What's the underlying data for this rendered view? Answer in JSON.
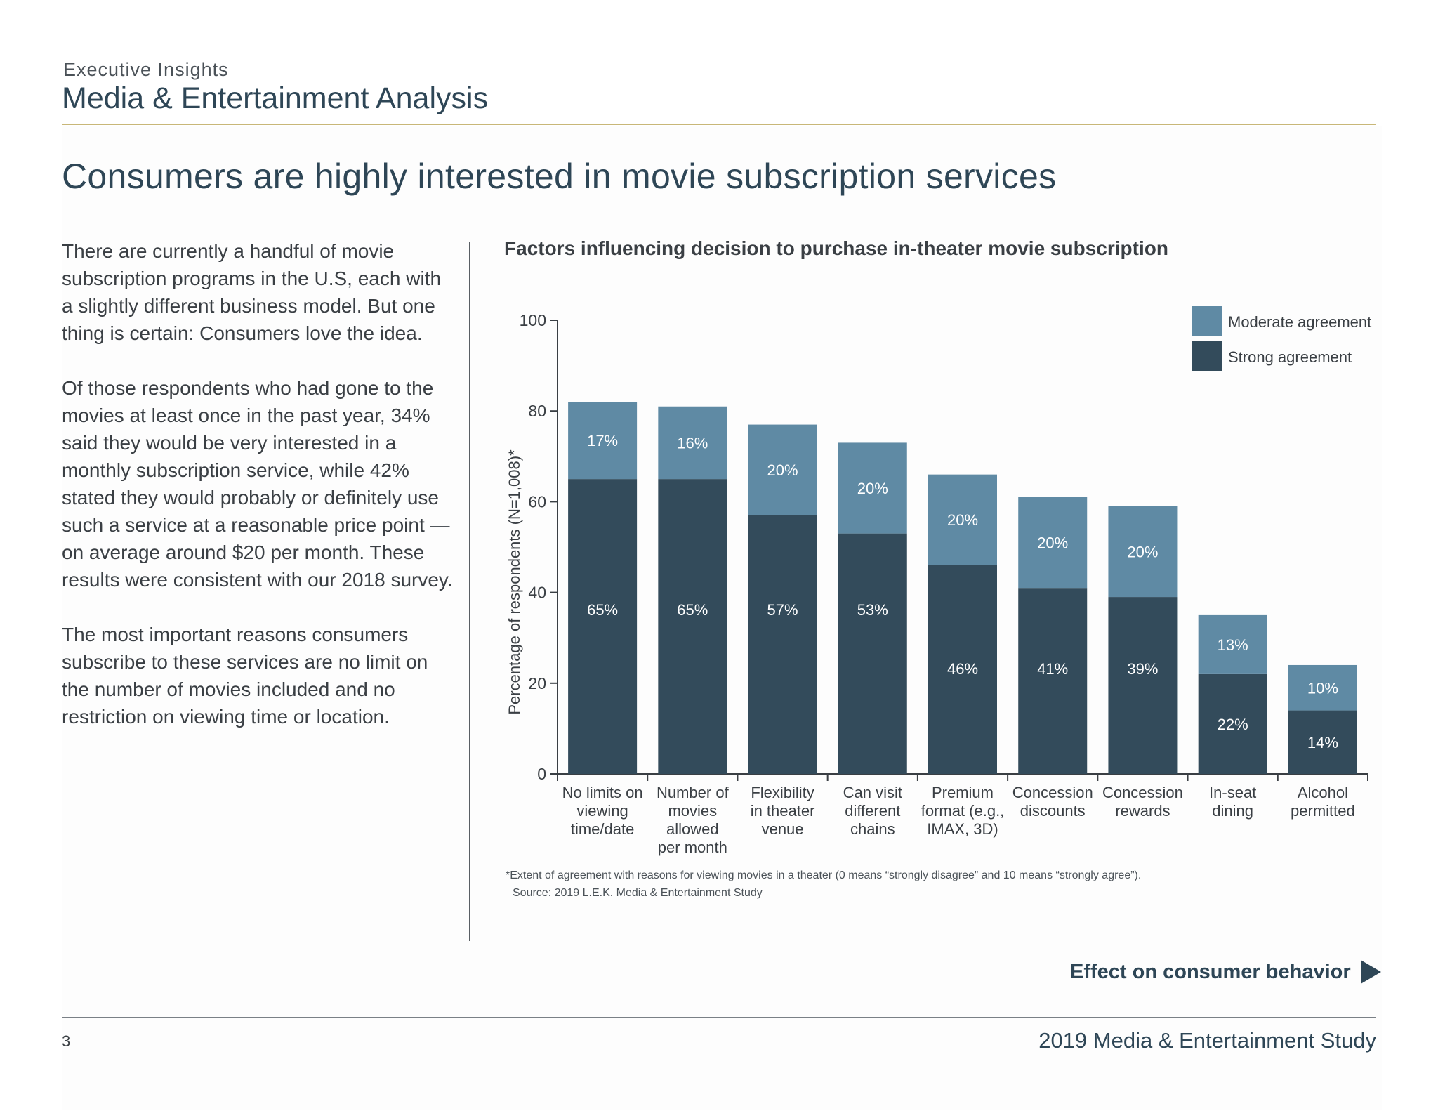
{
  "header": {
    "kicker": "Executive Insights",
    "section_title": "Media & Entertainment Analysis"
  },
  "headline": "Consumers are highly interested in movie subscription services",
  "body": {
    "paragraphs": [
      "There are currently a handful of movie subscription programs in the U.S, each with a slightly different business model. But one thing is certain: Consumers love the idea.",
      "Of those respondents who had gone to the movies at least once in the past year, 34% said they would be very interested in a monthly subscription service, while 42% stated they would probably or definitely use such a service at a reasonable price point — on average around $20 per month. These results were consistent with our 2018 survey.",
      "The most important reasons consumers subscribe to these services are no limit on the number of movies included and no restriction on viewing time or location."
    ]
  },
  "colors": {
    "strong": "#334b5b",
    "moderate": "#5f8aa4",
    "heading": "#2e4656",
    "gold_rule": "#c8b778"
  },
  "chart_data": {
    "type": "bar",
    "stacked": true,
    "title": "Factors influencing decision to purchase in-theater movie subscription",
    "ylabel": "Percentage of respondents (N=1,008)*",
    "ylim": [
      0,
      100
    ],
    "yticks": [
      0,
      20,
      40,
      60,
      80,
      100
    ],
    "categories": [
      [
        "No limits on",
        "viewing",
        "time/date"
      ],
      [
        "Number of",
        "movies",
        "allowed",
        "per month"
      ],
      [
        "Flexibility",
        "in theater",
        "venue"
      ],
      [
        "Can visit",
        "different",
        "chains"
      ],
      [
        "Premium",
        "format (e.g.,",
        "IMAX, 3D)"
      ],
      [
        "Concession",
        "discounts"
      ],
      [
        "Concession",
        "rewards"
      ],
      [
        "In-seat",
        "dining"
      ],
      [
        "Alcohol",
        "permitted"
      ]
    ],
    "series": [
      {
        "name": "Strong agreement",
        "values": [
          65,
          65,
          57,
          53,
          46,
          41,
          39,
          22,
          14
        ],
        "labels": [
          "65%",
          "65%",
          "57%",
          "53%",
          "46%",
          "41%",
          "39%",
          "22%",
          "14%"
        ]
      },
      {
        "name": "Moderate agreement",
        "values": [
          17,
          16,
          20,
          20,
          20,
          20,
          20,
          13,
          10
        ],
        "labels": [
          "17%",
          "16%",
          "20%",
          "20%",
          "20%",
          "20%",
          "20%",
          "13%",
          "10%"
        ]
      }
    ],
    "legend": [
      {
        "label": "Moderate agreement"
      },
      {
        "label": "Strong agreement"
      }
    ],
    "legend_position": "top-right"
  },
  "footnote": "*Extent of agreement with reasons for viewing movies in a theater (0 means “strongly disagree” and 10 means “strongly agree”).",
  "source": "Source: 2019 L.E.K. Media & Entertainment Study",
  "cta": {
    "label": "Effect on consumer behavior"
  },
  "footer": {
    "page_number": "3",
    "title": "2019 Media & Entertainment Study"
  }
}
